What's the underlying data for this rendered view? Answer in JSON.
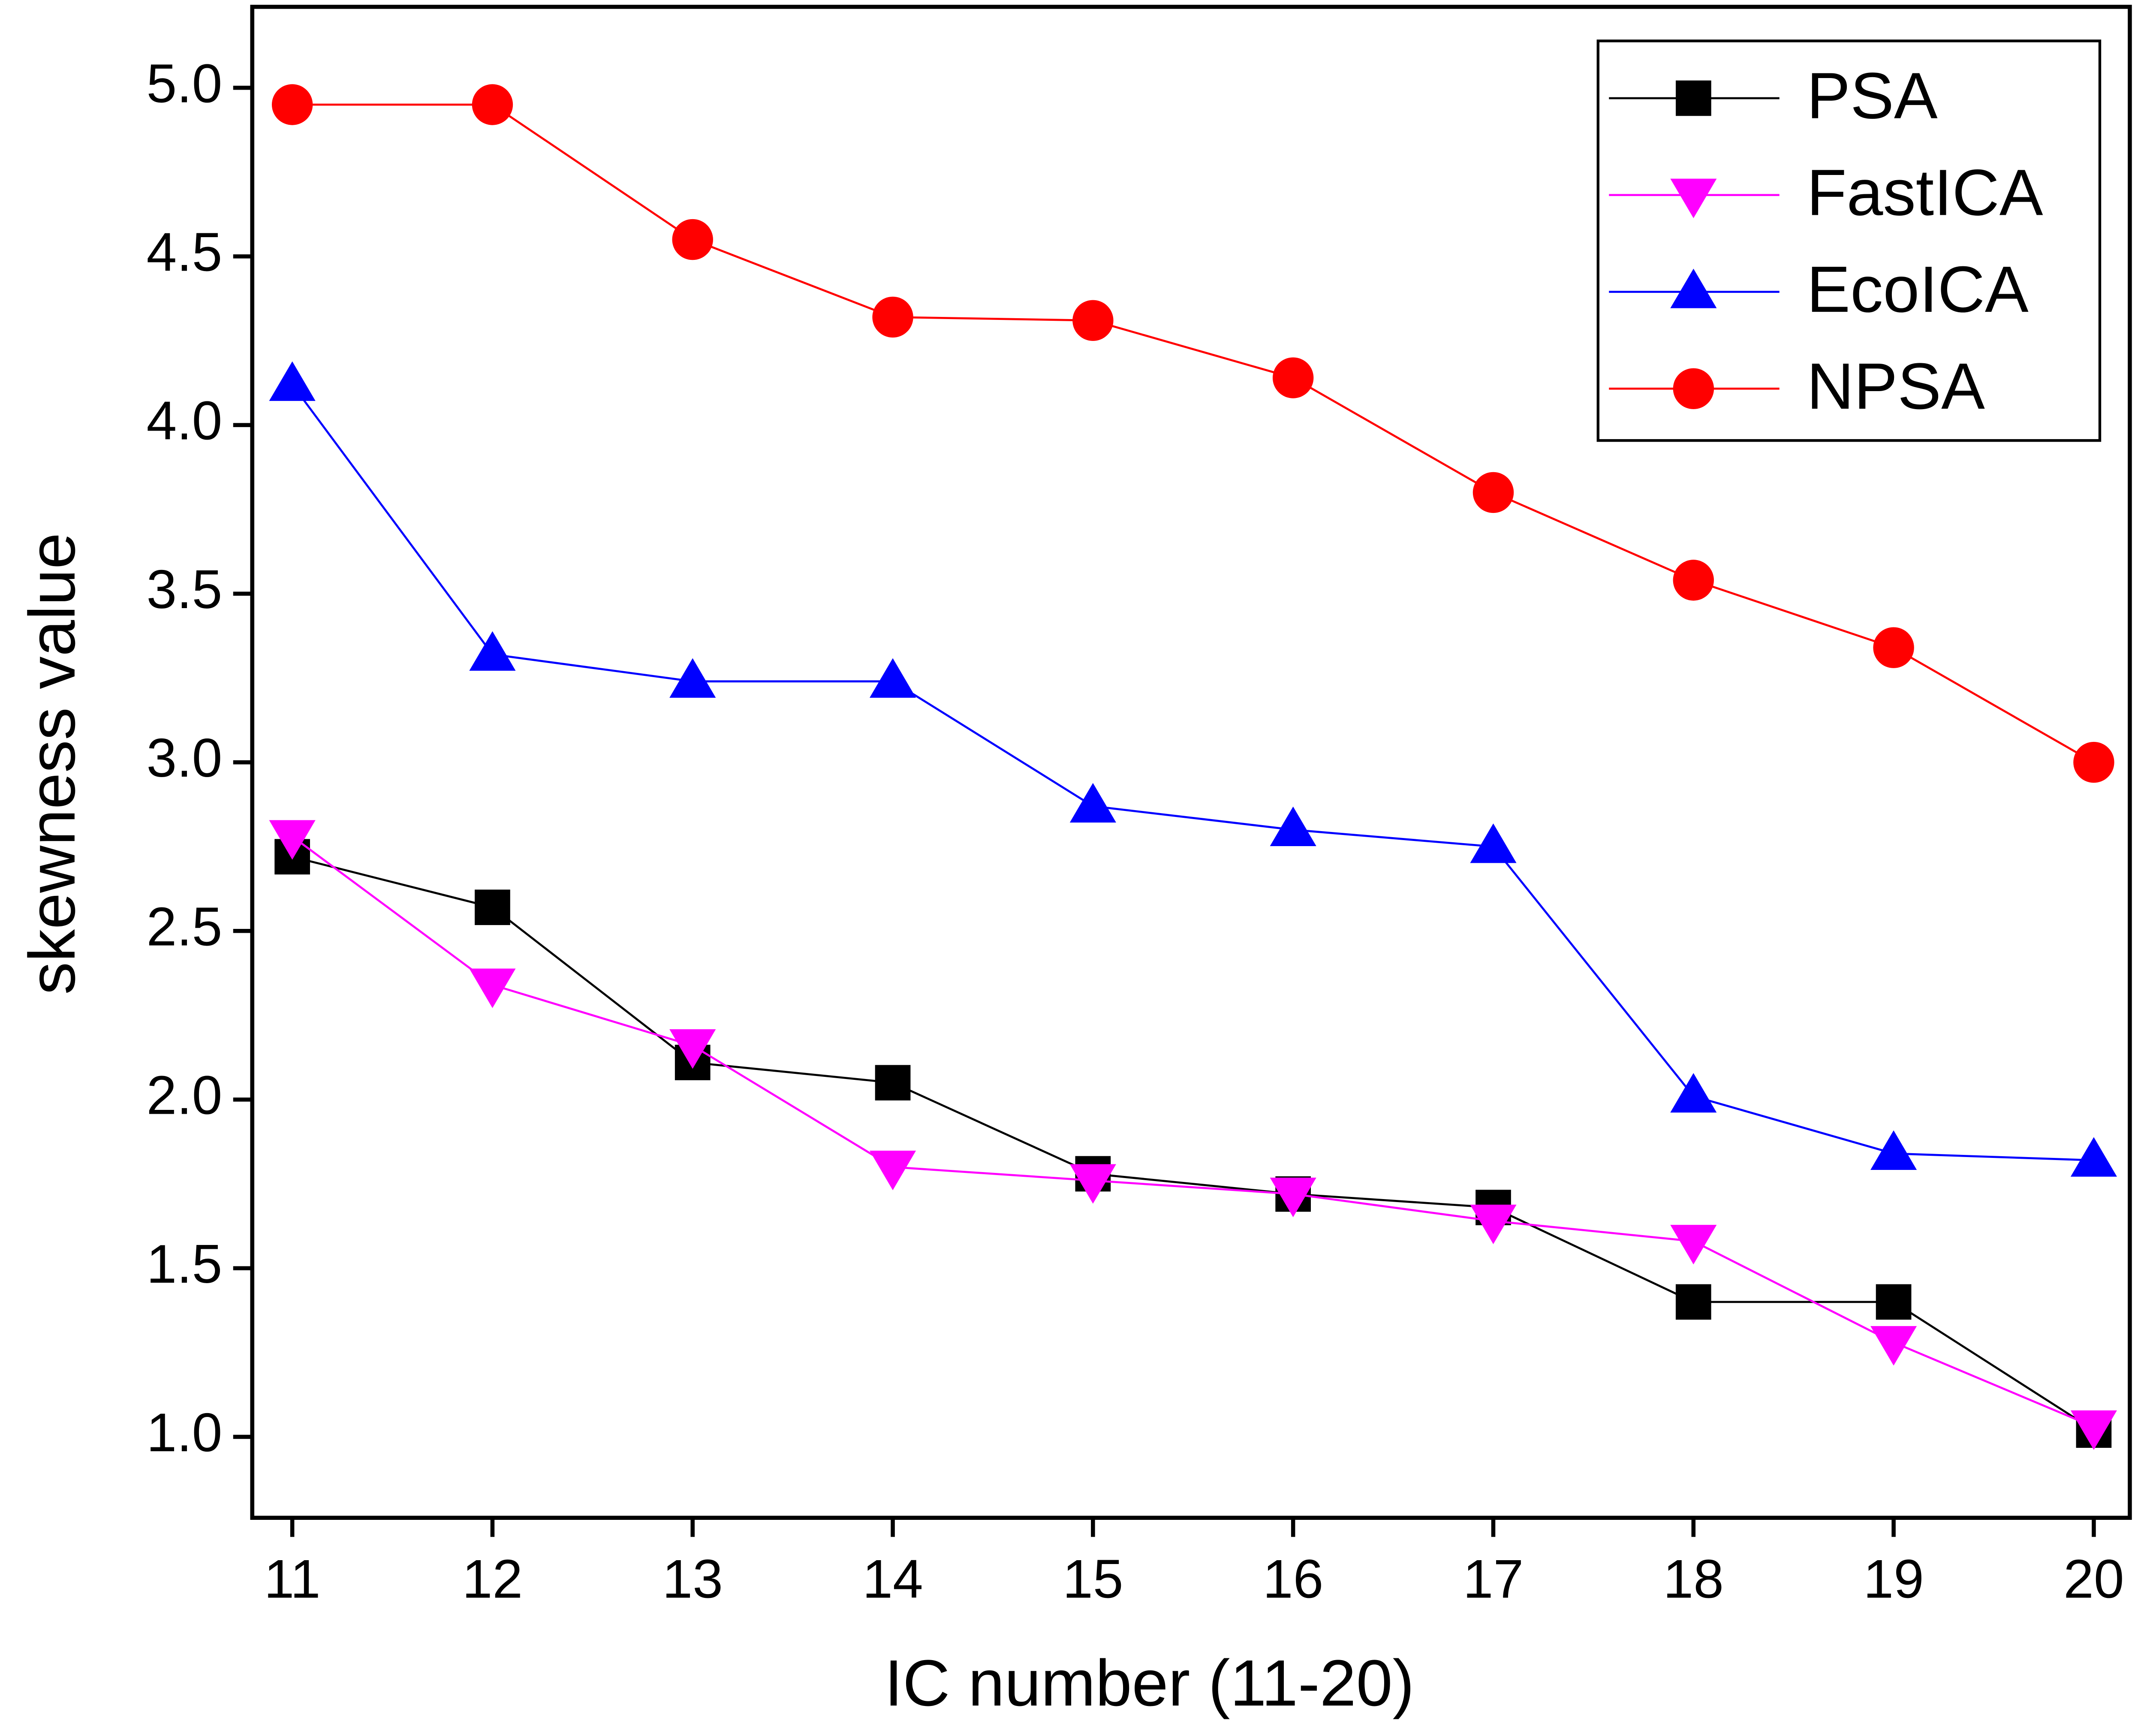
{
  "chart_data": {
    "type": "line",
    "x_label": "IC number (11-20)",
    "y_label": "skewness value",
    "x": [
      11,
      12,
      13,
      14,
      15,
      16,
      17,
      18,
      19,
      20
    ],
    "xlim": [
      10.8,
      20.18
    ],
    "xticks": [
      11,
      12,
      13,
      14,
      15,
      16,
      17,
      18,
      19,
      20
    ],
    "ylim": [
      0.76,
      5.24
    ],
    "yticks": [
      {
        "value": 1,
        "label": "1.0"
      },
      1.5,
      {
        "value": 2,
        "label": "2.0"
      },
      2.5,
      {
        "value": 3,
        "label": "3.0"
      },
      3.5,
      {
        "value": 4,
        "label": "4.0"
      },
      4.5,
      {
        "value": 5,
        "label": "5.0"
      }
    ],
    "legend": "upper right",
    "series": [
      {
        "name": "PSA",
        "color": "#000000",
        "marker": "square",
        "values": [
          2.72,
          2.57,
          2.11,
          2.05,
          1.78,
          1.72,
          1.68,
          1.4,
          1.4,
          1.02
        ]
      },
      {
        "name": "FastICA",
        "color": "#ff00ff",
        "marker": "triangle-down",
        "values": [
          2.78,
          2.34,
          2.16,
          1.8,
          1.76,
          1.72,
          1.64,
          1.58,
          1.28,
          1.03
        ]
      },
      {
        "name": "EcoICA",
        "color": "#0000ff",
        "marker": "triangle-up",
        "values": [
          4.12,
          3.32,
          3.24,
          3.24,
          2.87,
          2.8,
          2.75,
          2.01,
          1.84,
          1.82
        ]
      },
      {
        "name": "NPSA",
        "color": "#ff0000",
        "marker": "circle",
        "values": [
          4.95,
          4.95,
          4.55,
          4.32,
          4.31,
          4.14,
          3.8,
          3.54,
          3.34,
          3.0
        ]
      }
    ]
  }
}
